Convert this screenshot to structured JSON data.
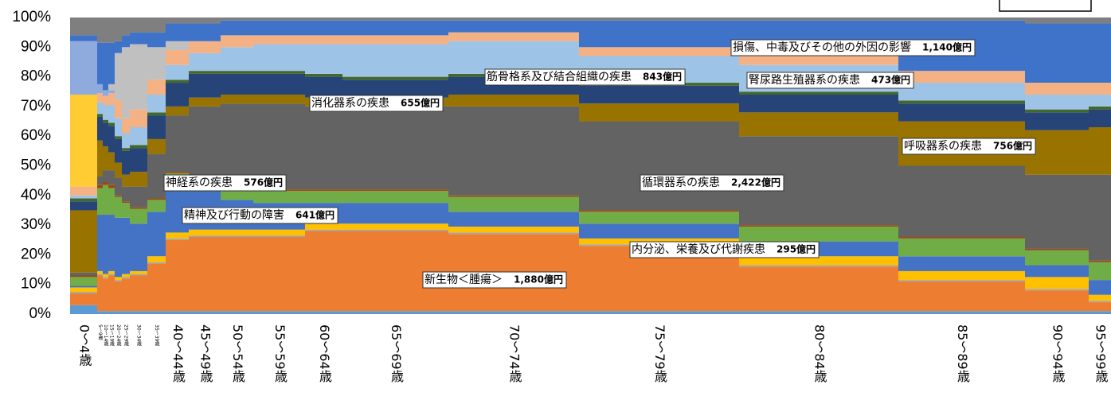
{
  "chart_data": {
    "type": "mekko",
    "categories": [
      "0～4歳",
      "5～9歳",
      "10～14歳",
      "15～19歳",
      "20～24歳",
      "25～29歳",
      "30～34歳",
      "35～39歳",
      "40～44歳",
      "45～49歳",
      "50～54歳",
      "55～59歳",
      "60～64歳",
      "65～69歳",
      "70～74歳",
      "75～79歳",
      "80～84歳",
      "85～89歳",
      "90～94歳",
      "95～99歳"
    ],
    "widths": [
      34,
      7,
      7,
      8,
      9,
      10,
      22,
      23,
      29,
      40,
      41,
      65,
      47,
      133,
      164,
      201,
      200,
      159,
      80,
      28
    ],
    "ylim": [
      0,
      100
    ],
    "yticks": [
      {
        "value": 0,
        "label": "0%"
      },
      {
        "value": 10,
        "label": "10%"
      },
      {
        "value": 20,
        "label": "20%"
      },
      {
        "value": 30,
        "label": "30%"
      },
      {
        "value": 40,
        "label": "40%"
      },
      {
        "value": 50,
        "label": "50%"
      },
      {
        "value": 60,
        "label": "60%"
      },
      {
        "value": 70,
        "label": "70%"
      },
      {
        "value": 80,
        "label": "80%"
      },
      {
        "value": 90,
        "label": "90%"
      },
      {
        "value": 100,
        "label": "100%"
      }
    ],
    "series": [
      {
        "color": "#5b9bd5",
        "values": [
          3,
          1,
          1,
          1,
          1,
          1,
          1,
          1,
          1,
          1,
          1,
          1,
          1,
          1,
          1,
          1,
          1,
          1,
          1,
          1
        ]
      },
      {
        "name": "新生物＜腫瘍＞",
        "amount_label": "1,880億円",
        "color": "#ed7d31",
        "values": [
          4,
          12,
          11,
          12,
          10,
          11,
          12,
          16,
          24,
          25,
          25,
          25,
          27,
          27,
          26,
          22,
          15,
          10,
          7,
          3
        ]
      },
      {
        "color": "#a5a5a5",
        "values": [
          0.5,
          0.5,
          0.5,
          0.5,
          0.5,
          0.5,
          0.5,
          0.5,
          0.5,
          0.5,
          0.5,
          0.5,
          0.5,
          0.5,
          0.5,
          0.5,
          0.5,
          0.5,
          0.5,
          0.5
        ]
      },
      {
        "name": "内分泌、栄養及び代謝疾患",
        "amount_label": "295億円",
        "color": "#ffc000",
        "values": [
          1.5,
          1,
          1,
          1,
          1,
          1,
          1,
          2,
          2,
          2,
          2,
          2,
          2,
          2,
          2,
          2,
          3,
          3,
          4,
          2
        ]
      },
      {
        "name": "精神及び行動の障害",
        "amount_label": "641億円",
        "color": "#4472c4",
        "values": [
          0.5,
          19,
          20,
          19,
          20,
          19,
          16,
          15,
          16,
          13,
          10,
          9,
          7,
          7,
          5,
          5,
          5,
          5,
          4,
          5
        ]
      },
      {
        "name": "神経系の疾患",
        "amount_label": "576億円",
        "color": "#70ad47",
        "values": [
          3,
          9,
          10,
          9,
          7,
          5,
          5,
          4,
          4,
          5,
          4,
          4,
          4,
          4,
          5,
          4,
          5,
          6,
          5,
          6
        ]
      },
      {
        "color": "#9e480e",
        "values": [
          0.5,
          1,
          1,
          1,
          0.5,
          0.5,
          0.5,
          0.5,
          0.5,
          0.5,
          0.5,
          0.5,
          0.5,
          0.5,
          0.5,
          0.5,
          0.5,
          0.5,
          0.5,
          0.5
        ]
      },
      {
        "name": "循環器系の疾患",
        "amount_label": "2,422億円",
        "color": "#636363",
        "values": [
          1,
          3,
          4,
          5,
          6,
          5,
          7,
          15,
          19,
          23,
          28,
          29,
          28,
          28,
          30,
          30,
          30,
          24,
          25,
          29
        ]
      },
      {
        "name": "呼吸器系の疾患",
        "amount_label": "756億円",
        "color": "#997300",
        "values": [
          21,
          12,
          8,
          6,
          5,
          4,
          5,
          5,
          3,
          3,
          3,
          3,
          3,
          3,
          4,
          6,
          8,
          15,
          15,
          16
        ]
      },
      {
        "name": "消化器系の疾患",
        "amount_label": "655億円",
        "color": "#264478",
        "values": [
          3,
          8,
          8,
          9,
          8,
          8,
          8,
          8,
          8,
          8,
          7,
          7,
          7,
          6,
          6,
          6,
          6,
          6,
          6,
          6
        ]
      },
      {
        "color": "#43682b",
        "values": [
          1,
          1,
          1,
          1,
          1,
          1,
          1,
          1,
          1,
          1,
          1,
          1,
          1,
          1,
          1,
          1,
          1,
          1,
          1,
          1
        ]
      },
      {
        "name": "筋骨格系及び結合組織の疾患",
        "amount_label": "843億円",
        "color": "#9dc3e6",
        "values": [
          1,
          4,
          5,
          6,
          6,
          5,
          6,
          6,
          5,
          6,
          8,
          9,
          10,
          11,
          11,
          9,
          9,
          6,
          5,
          4
        ]
      },
      {
        "name": "腎尿路生殖器系の疾患",
        "amount_label": "473億円",
        "color": "#f4b183",
        "values": [
          3,
          3,
          3,
          4,
          6,
          5,
          6,
          5,
          5,
          4,
          4,
          3,
          3,
          3,
          3,
          3,
          3,
          4,
          4,
          4
        ]
      },
      {
        "color": "#ffcd33",
        "values": [
          31,
          0,
          0,
          0,
          0,
          0,
          0,
          0,
          0,
          0,
          0,
          0,
          0,
          0,
          0,
          0,
          0,
          0,
          0,
          0
        ]
      },
      {
        "color": "#8faadc",
        "values": [
          18,
          3,
          2,
          1,
          0,
          0,
          0,
          0,
          0,
          0,
          0,
          0,
          0,
          0,
          0,
          0,
          0,
          0,
          0,
          0
        ]
      },
      {
        "color": "#c0c0c0",
        "values": [
          0,
          0,
          0,
          2,
          16,
          24,
          22,
          11,
          3,
          0,
          0,
          0,
          0,
          0,
          0,
          0,
          0,
          0,
          0,
          0
        ]
      },
      {
        "name": "損傷、中毒及びその他の外因の影響",
        "amount_label": "1,140億円",
        "color": "#3f73c9",
        "values": [
          2,
          14,
          16,
          14,
          4,
          4,
          4,
          5,
          6,
          6,
          5,
          5,
          5,
          5,
          4,
          9,
          12,
          17,
          20,
          20
        ]
      },
      {
        "color": "#7f7f7f",
        "values": [
          6,
          8.5,
          8.5,
          8.5,
          8,
          6,
          5,
          5,
          2,
          2,
          1,
          1,
          1,
          1,
          1,
          1,
          1,
          1,
          2,
          2
        ]
      }
    ]
  }
}
